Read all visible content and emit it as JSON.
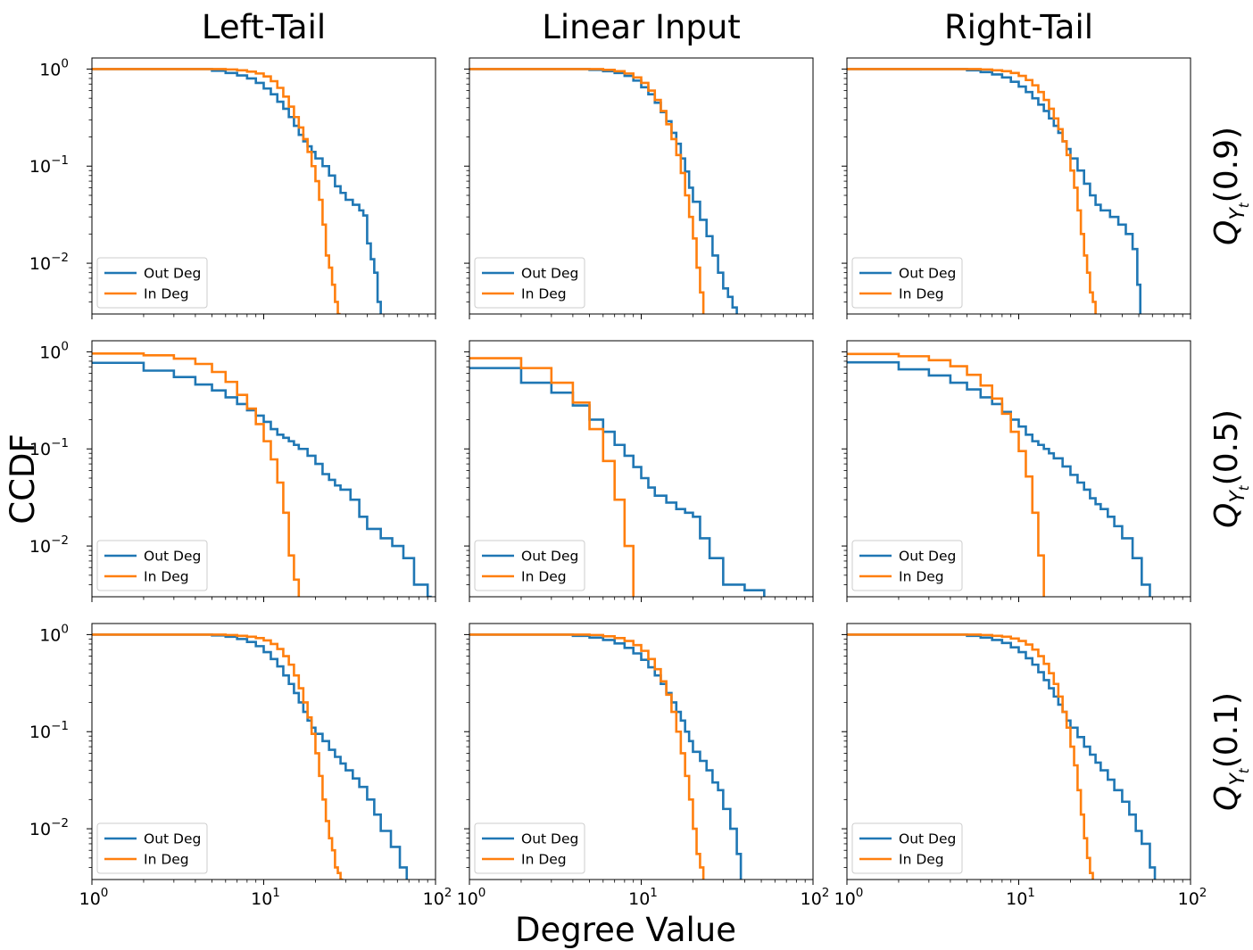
{
  "figure": {
    "ylabel": "CCDF",
    "xlabel": "Degree Value",
    "column_titles": [
      "Left-Tail",
      "Linear Input",
      "Right-Tail"
    ],
    "row_labels": [
      {
        "main": "Q",
        "sub": "Y",
        "subsub": "t",
        "tail": "(0.9)"
      },
      {
        "main": "Q",
        "sub": "Y",
        "subsub": "t",
        "tail": "(0.5)"
      },
      {
        "main": "Q",
        "sub": "Y",
        "subsub": "t",
        "tail": "(0.1)"
      }
    ],
    "x_ticks": [
      {
        "base": "10",
        "exp": "0"
      },
      {
        "base": "10",
        "exp": "1"
      },
      {
        "base": "10",
        "exp": "2"
      }
    ],
    "y_ticks": [
      {
        "base": "10",
        "exp": "0"
      },
      {
        "base": "10",
        "exp": "−1"
      },
      {
        "base": "10",
        "exp": "−2"
      }
    ],
    "colors": {
      "out": "#1f77b4",
      "in": "#ff7f0e"
    }
  },
  "chart_data": [
    {
      "type": "line",
      "row": 0,
      "col": 0,
      "xscale": "log",
      "yscale": "log",
      "xlim": [
        1,
        100
      ],
      "ylim": [
        0.003,
        1.3
      ],
      "legend": "lower-left",
      "series": [
        {
          "name": "Out Deg",
          "x": [
            1,
            5,
            6,
            7,
            8,
            9,
            10,
            11,
            12,
            13,
            14,
            15,
            16,
            17,
            18,
            19,
            20,
            22,
            24,
            26,
            28,
            30,
            33,
            36,
            38,
            40,
            42,
            44,
            46,
            48
          ],
          "y": [
            1.0,
            0.96,
            0.91,
            0.86,
            0.8,
            0.72,
            0.63,
            0.55,
            0.46,
            0.39,
            0.32,
            0.26,
            0.21,
            0.18,
            0.16,
            0.14,
            0.12,
            0.1,
            0.08,
            0.062,
            0.053,
            0.045,
            0.04,
            0.035,
            0.031,
            0.016,
            0.011,
            0.008,
            0.004,
            0.003
          ]
        },
        {
          "name": "In Deg",
          "x": [
            1,
            6,
            7,
            8,
            9,
            10,
            11,
            12,
            13,
            14,
            15,
            16,
            17,
            18,
            19,
            20,
            21,
            22,
            23,
            24,
            25,
            26,
            27,
            28
          ],
          "y": [
            1.0,
            0.99,
            0.97,
            0.94,
            0.9,
            0.84,
            0.75,
            0.64,
            0.52,
            0.41,
            0.32,
            0.25,
            0.19,
            0.14,
            0.1,
            0.07,
            0.045,
            0.025,
            0.012,
            0.009,
            0.006,
            0.004,
            0.003,
            0.003
          ]
        }
      ]
    },
    {
      "type": "line",
      "row": 0,
      "col": 1,
      "xscale": "log",
      "yscale": "log",
      "xlim": [
        1,
        100
      ],
      "ylim": [
        0.003,
        1.3
      ],
      "legend": "lower-left",
      "series": [
        {
          "name": "Out Deg",
          "x": [
            1,
            5,
            6,
            7,
            8,
            9,
            10,
            11,
            12,
            13,
            14,
            15,
            16,
            17,
            18,
            19,
            20,
            22,
            24,
            26,
            28,
            30,
            32,
            34,
            36
          ],
          "y": [
            1.0,
            0.98,
            0.95,
            0.91,
            0.85,
            0.76,
            0.65,
            0.55,
            0.45,
            0.36,
            0.29,
            0.22,
            0.17,
            0.12,
            0.088,
            0.06,
            0.043,
            0.028,
            0.019,
            0.012,
            0.008,
            0.0055,
            0.0045,
            0.0035,
            0.003
          ]
        },
        {
          "name": "In Deg",
          "x": [
            1,
            6,
            7,
            8,
            9,
            10,
            11,
            12,
            13,
            14,
            15,
            16,
            17,
            18,
            19,
            20,
            21,
            22,
            23
          ],
          "y": [
            1.0,
            0.98,
            0.95,
            0.9,
            0.82,
            0.72,
            0.6,
            0.48,
            0.37,
            0.27,
            0.19,
            0.13,
            0.085,
            0.05,
            0.03,
            0.018,
            0.009,
            0.005,
            0.003
          ]
        }
      ]
    },
    {
      "type": "line",
      "row": 0,
      "col": 2,
      "xscale": "log",
      "yscale": "log",
      "xlim": [
        1,
        100
      ],
      "ylim": [
        0.003,
        1.3
      ],
      "legend": "lower-left",
      "series": [
        {
          "name": "Out Deg",
          "x": [
            1,
            5,
            6,
            7,
            8,
            9,
            10,
            11,
            12,
            13,
            14,
            15,
            16,
            17,
            18,
            19,
            20,
            22,
            24,
            26,
            28,
            30,
            34,
            38,
            42,
            46,
            49,
            51
          ],
          "y": [
            1.0,
            0.97,
            0.93,
            0.88,
            0.82,
            0.74,
            0.66,
            0.58,
            0.5,
            0.43,
            0.37,
            0.31,
            0.26,
            0.22,
            0.18,
            0.15,
            0.12,
            0.09,
            0.066,
            0.05,
            0.04,
            0.035,
            0.03,
            0.025,
            0.02,
            0.014,
            0.006,
            0.003
          ]
        },
        {
          "name": "In Deg",
          "x": [
            1,
            6,
            7,
            8,
            9,
            10,
            11,
            12,
            13,
            14,
            15,
            16,
            17,
            18,
            19,
            20,
            21,
            22,
            23,
            24,
            25,
            26,
            27,
            28
          ],
          "y": [
            1.0,
            0.99,
            0.97,
            0.95,
            0.91,
            0.85,
            0.77,
            0.68,
            0.58,
            0.48,
            0.39,
            0.31,
            0.24,
            0.18,
            0.13,
            0.09,
            0.06,
            0.035,
            0.02,
            0.012,
            0.008,
            0.005,
            0.004,
            0.003
          ]
        }
      ]
    },
    {
      "type": "line",
      "row": 1,
      "col": 0,
      "xscale": "log",
      "yscale": "log",
      "xlim": [
        1,
        100
      ],
      "ylim": [
        0.003,
        1.3
      ],
      "legend": "lower-left",
      "series": [
        {
          "name": "Out Deg",
          "x": [
            1,
            2,
            3,
            4,
            5,
            6,
            7,
            8,
            9,
            10,
            11,
            12,
            13,
            14,
            15,
            16,
            18,
            20,
            22,
            24,
            26,
            28,
            30,
            32,
            36,
            40,
            48,
            56,
            65,
            75,
            90,
            95
          ],
          "y": [
            0.77,
            0.64,
            0.55,
            0.46,
            0.4,
            0.34,
            0.29,
            0.25,
            0.22,
            0.19,
            0.16,
            0.14,
            0.13,
            0.12,
            0.11,
            0.1,
            0.085,
            0.07,
            0.055,
            0.048,
            0.042,
            0.038,
            0.038,
            0.03,
            0.02,
            0.015,
            0.012,
            0.01,
            0.0075,
            0.004,
            0.003,
            0.003
          ]
        },
        {
          "name": "In Deg",
          "x": [
            1,
            2,
            3,
            4,
            5,
            6,
            7,
            8,
            9,
            10,
            11,
            12,
            13,
            14,
            15,
            16
          ],
          "y": [
            0.96,
            0.92,
            0.85,
            0.75,
            0.62,
            0.49,
            0.36,
            0.26,
            0.18,
            0.12,
            0.078,
            0.045,
            0.022,
            0.008,
            0.0045,
            0.003
          ]
        }
      ]
    },
    {
      "type": "line",
      "row": 1,
      "col": 1,
      "xscale": "log",
      "yscale": "log",
      "xlim": [
        1,
        100
      ],
      "ylim": [
        0.003,
        1.3
      ],
      "legend": "lower-left",
      "series": [
        {
          "name": "Out Deg",
          "x": [
            1,
            2,
            3,
            4,
            5,
            6,
            7,
            8,
            9,
            10,
            11,
            12,
            14,
            16,
            18,
            20,
            22,
            25,
            30,
            40,
            52
          ],
          "y": [
            0.68,
            0.48,
            0.38,
            0.28,
            0.2,
            0.15,
            0.11,
            0.085,
            0.065,
            0.05,
            0.04,
            0.033,
            0.028,
            0.024,
            0.022,
            0.02,
            0.012,
            0.0075,
            0.004,
            0.0035,
            0.003
          ]
        },
        {
          "name": "In Deg",
          "x": [
            1,
            2,
            3,
            4,
            5,
            6,
            7,
            8,
            9
          ],
          "y": [
            0.86,
            0.68,
            0.48,
            0.3,
            0.16,
            0.075,
            0.03,
            0.01,
            0.003
          ]
        }
      ]
    },
    {
      "type": "line",
      "row": 1,
      "col": 2,
      "xscale": "log",
      "yscale": "log",
      "xlim": [
        1,
        100
      ],
      "ylim": [
        0.003,
        1.3
      ],
      "legend": "lower-left",
      "series": [
        {
          "name": "Out Deg",
          "x": [
            1,
            2,
            3,
            4,
            5,
            6,
            7,
            8,
            9,
            10,
            11,
            12,
            13,
            14,
            15,
            16,
            18,
            20,
            22,
            24,
            26,
            28,
            30,
            33,
            36,
            40,
            46,
            52,
            58
          ],
          "y": [
            0.78,
            0.66,
            0.57,
            0.48,
            0.41,
            0.34,
            0.29,
            0.24,
            0.2,
            0.17,
            0.14,
            0.12,
            0.11,
            0.1,
            0.09,
            0.08,
            0.066,
            0.054,
            0.045,
            0.038,
            0.031,
            0.027,
            0.024,
            0.02,
            0.016,
            0.012,
            0.0075,
            0.004,
            0.003
          ]
        },
        {
          "name": "In Deg",
          "x": [
            1,
            2,
            3,
            4,
            5,
            6,
            7,
            8,
            9,
            10,
            11,
            12,
            13,
            14
          ],
          "y": [
            0.95,
            0.9,
            0.82,
            0.71,
            0.58,
            0.45,
            0.33,
            0.23,
            0.15,
            0.095,
            0.052,
            0.022,
            0.008,
            0.003
          ]
        }
      ]
    },
    {
      "type": "line",
      "row": 2,
      "col": 0,
      "xscale": "log",
      "yscale": "log",
      "xlim": [
        1,
        100
      ],
      "ylim": [
        0.003,
        1.3
      ],
      "legend": "lower-left",
      "series": [
        {
          "name": "Out Deg",
          "x": [
            1,
            5,
            6,
            7,
            8,
            9,
            10,
            11,
            12,
            13,
            14,
            15,
            16,
            17,
            18,
            19,
            20,
            22,
            24,
            26,
            28,
            30,
            33,
            36,
            40,
            44,
            48,
            55,
            62,
            68
          ],
          "y": [
            1.0,
            0.98,
            0.95,
            0.9,
            0.84,
            0.76,
            0.66,
            0.56,
            0.47,
            0.38,
            0.31,
            0.25,
            0.2,
            0.16,
            0.13,
            0.11,
            0.095,
            0.08,
            0.065,
            0.055,
            0.047,
            0.04,
            0.033,
            0.027,
            0.02,
            0.014,
            0.0095,
            0.0065,
            0.004,
            0.003
          ]
        },
        {
          "name": "In Deg",
          "x": [
            1,
            6,
            7,
            8,
            9,
            10,
            11,
            12,
            13,
            14,
            15,
            16,
            17,
            18,
            19,
            20,
            21,
            22,
            23,
            24,
            25,
            26,
            27,
            28,
            29
          ],
          "y": [
            1.0,
            0.99,
            0.97,
            0.95,
            0.92,
            0.87,
            0.8,
            0.71,
            0.6,
            0.49,
            0.38,
            0.28,
            0.2,
            0.14,
            0.095,
            0.06,
            0.035,
            0.02,
            0.012,
            0.008,
            0.006,
            0.004,
            0.0035,
            0.003,
            0.003
          ]
        }
      ]
    },
    {
      "type": "line",
      "row": 2,
      "col": 1,
      "xscale": "log",
      "yscale": "log",
      "xlim": [
        1,
        100
      ],
      "ylim": [
        0.003,
        1.3
      ],
      "legend": "lower-left",
      "series": [
        {
          "name": "Out Deg",
          "x": [
            1,
            4,
            5,
            6,
            7,
            8,
            9,
            10,
            11,
            12,
            13,
            14,
            15,
            16,
            17,
            18,
            19,
            20,
            22,
            24,
            26,
            28,
            30,
            33,
            36,
            38
          ],
          "y": [
            1.0,
            0.97,
            0.93,
            0.88,
            0.81,
            0.73,
            0.64,
            0.55,
            0.46,
            0.38,
            0.31,
            0.25,
            0.2,
            0.16,
            0.13,
            0.1,
            0.08,
            0.062,
            0.05,
            0.04,
            0.03,
            0.025,
            0.016,
            0.01,
            0.0055,
            0.003
          ]
        },
        {
          "name": "In Deg",
          "x": [
            1,
            5,
            6,
            7,
            8,
            9,
            10,
            11,
            12,
            13,
            14,
            15,
            16,
            17,
            18,
            19,
            20,
            21,
            22,
            23
          ],
          "y": [
            1.0,
            0.99,
            0.96,
            0.92,
            0.86,
            0.78,
            0.68,
            0.56,
            0.44,
            0.33,
            0.24,
            0.16,
            0.1,
            0.06,
            0.035,
            0.02,
            0.01,
            0.0055,
            0.004,
            0.003
          ]
        }
      ]
    },
    {
      "type": "line",
      "row": 2,
      "col": 2,
      "xscale": "log",
      "yscale": "log",
      "xlim": [
        1,
        100
      ],
      "ylim": [
        0.003,
        1.3
      ],
      "legend": "lower-left",
      "series": [
        {
          "name": "Out Deg",
          "x": [
            1,
            5,
            6,
            7,
            8,
            9,
            10,
            11,
            12,
            13,
            14,
            15,
            16,
            17,
            18,
            19,
            20,
            22,
            24,
            26,
            28,
            30,
            33,
            36,
            40,
            44,
            48,
            52,
            58,
            62
          ],
          "y": [
            1.0,
            0.97,
            0.93,
            0.88,
            0.82,
            0.74,
            0.66,
            0.57,
            0.49,
            0.41,
            0.34,
            0.28,
            0.23,
            0.19,
            0.16,
            0.13,
            0.11,
            0.088,
            0.07,
            0.058,
            0.048,
            0.04,
            0.032,
            0.025,
            0.019,
            0.014,
            0.0095,
            0.007,
            0.004,
            0.003
          ]
        },
        {
          "name": "In Deg",
          "x": [
            1,
            6,
            7,
            8,
            9,
            10,
            11,
            12,
            13,
            14,
            15,
            16,
            17,
            18,
            19,
            20,
            21,
            22,
            23,
            24,
            25,
            26,
            27
          ],
          "y": [
            1.0,
            0.99,
            0.97,
            0.95,
            0.91,
            0.86,
            0.79,
            0.7,
            0.6,
            0.5,
            0.4,
            0.31,
            0.23,
            0.16,
            0.11,
            0.07,
            0.045,
            0.025,
            0.014,
            0.008,
            0.005,
            0.0035,
            0.003
          ]
        }
      ]
    }
  ]
}
